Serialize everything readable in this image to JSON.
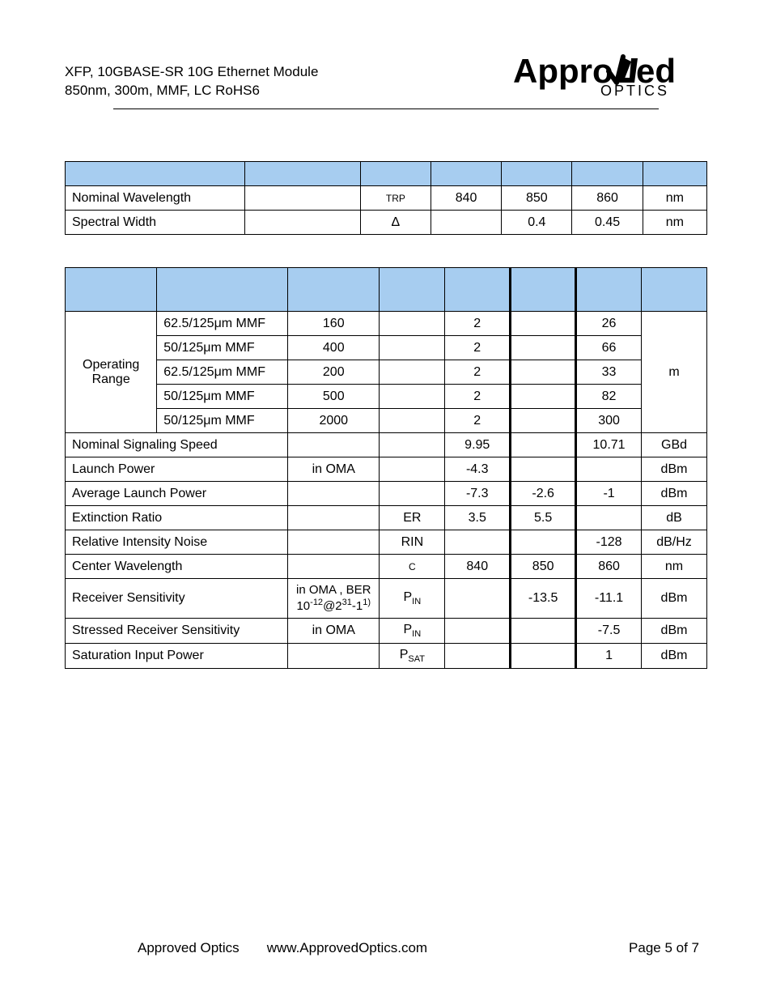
{
  "colors": {
    "header_bg": "#a7cdf0",
    "border": "#000000",
    "text": "#000000",
    "page_bg": "#ffffff"
  },
  "page": {
    "title_line1": "XFP, 10GBASE-SR 10G Ethernet Module",
    "title_line2": "850nm, 300m, MMF, LC RoHS6",
    "logo_main": "Appro",
    "logo_main2": "ed",
    "logo_sub": "OPTICS"
  },
  "table1": {
    "col_widths_pct": [
      28,
      18,
      11,
      11,
      11,
      11,
      10
    ],
    "rows": [
      {
        "label": "Nominal Wavelength",
        "c2": "",
        "c3_html": "<span class='small'>TRP</span>",
        "c4": "840",
        "c5": "850",
        "c6": "860",
        "c7": "nm"
      },
      {
        "label": "Spectral Width",
        "c2": "",
        "c3": "Δ",
        "c4": "",
        "c5": "0.4",
        "c6": "0.45",
        "c7": "nm"
      }
    ]
  },
  "table2": {
    "col_widths_pct": [
      14,
      20,
      14,
      10,
      10,
      10,
      10,
      10
    ],
    "op_range_label": "Operating Range",
    "op_rows": [
      {
        "fiber": "62.5/125μm MMF",
        "bw": "160",
        "c4": "",
        "c5": "2",
        "c6": "",
        "c7": "26"
      },
      {
        "fiber": "50/125μm MMF",
        "bw": "400",
        "c4": "",
        "c5": "2",
        "c6": "",
        "c7": "66"
      },
      {
        "fiber": "62.5/125μm MMF",
        "bw": "200",
        "c4": "",
        "c5": "2",
        "c6": "",
        "c7": "33"
      },
      {
        "fiber": "50/125μm MMF",
        "bw": "500",
        "c4": "",
        "c5": "2",
        "c6": "",
        "c7": "82"
      },
      {
        "fiber": "50/125μm MMF",
        "bw": "2000",
        "c4": "",
        "c5": "2",
        "c6": "",
        "c7": "300"
      }
    ],
    "op_unit": "m",
    "rows": [
      {
        "label": "Nominal Signaling Speed",
        "c3": "",
        "c4": "",
        "c5": "9.95",
        "c6": "",
        "c7": "10.71",
        "unit": "GBd"
      },
      {
        "label": "Launch Power",
        "c3": "in OMA",
        "c4": "",
        "c5": "-4.3",
        "c6": "",
        "c7": "",
        "unit": "dBm"
      },
      {
        "label": "Average Launch Power",
        "c3": "",
        "c4": "",
        "c5": "-7.3",
        "c6": "-2.6",
        "c7": "-1",
        "unit": "dBm"
      },
      {
        "label": "Extinction Ratio",
        "c3": "",
        "c4": "ER",
        "c5": "3.5",
        "c6": "5.5",
        "c7": "",
        "unit": "dB"
      },
      {
        "label": "Relative Intensity Noise",
        "c3": "",
        "c4": "RIN",
        "c5": "",
        "c6": "",
        "c7": "-128",
        "unit": "dB/Hz"
      },
      {
        "label": "Center Wavelength",
        "c3": "",
        "c4_html": "<span class='small'>C</span>",
        "c5": "840",
        "c6": "850",
        "c7": "860",
        "unit": "nm"
      },
      {
        "label": "Receiver Sensitivity",
        "c3_html": "<div class='multiline'>in OMA , BER<br>10<span class='sup'>-12</span>@2<span class='sup'>31</span>-1<span class='sup'>1)</span></div>",
        "c4_html": "P<span class='sub'>IN</span>",
        "c5": "",
        "c6": "-13.5",
        "c7": "-11.1",
        "unit": "dBm"
      },
      {
        "label": "Stressed Receiver Sensitivity",
        "c3": "in OMA",
        "c4_html": "P<span class='sub'>IN</span>",
        "c5": "",
        "c6": "",
        "c7": "-7.5",
        "unit": "dBm"
      },
      {
        "label": "Saturation Input Power",
        "c3": "",
        "c4_html": "P<span class='sub'>SAT</span>",
        "c5": "",
        "c6": "",
        "c7": "1",
        "unit": "dBm"
      }
    ]
  },
  "footer": {
    "company": "Approved Optics",
    "url": "www.ApprovedOptics.com",
    "page": "Page 5 of 7"
  }
}
